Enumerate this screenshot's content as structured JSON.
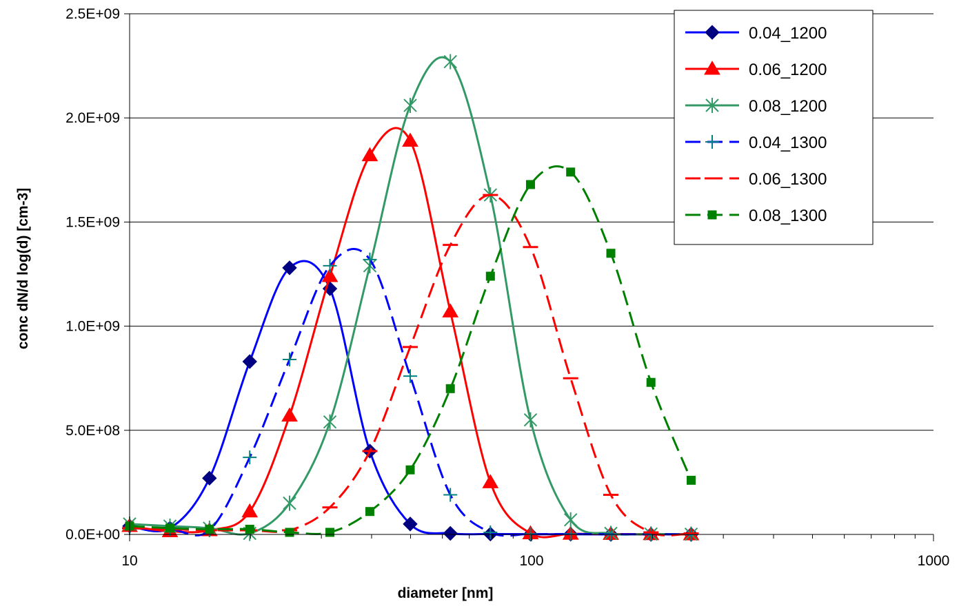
{
  "chart_data": {
    "type": "line",
    "title": "",
    "xlabel": "diameter [nm]",
    "ylabel": "conc dN/d log(d) [cm-3]",
    "x_scale": "log",
    "xlim": [
      10,
      1000
    ],
    "ylim": [
      0,
      2500000000
    ],
    "x_tick_labels": [
      "10",
      "100",
      "1000"
    ],
    "x_ticks": [
      10,
      100,
      1000
    ],
    "y_tick_labels": [
      "0.0E+00",
      "5.0E+08",
      "1.0E+09",
      "1.5E+09",
      "2.0E+09",
      "2.5E+09"
    ],
    "y_ticks": [
      0,
      500000000,
      1000000000,
      1500000000,
      2000000000,
      2500000000
    ],
    "grid": "horizontal",
    "legend_position": "top-right",
    "x": [
      10,
      12.6,
      15.8,
      19.9,
      25.0,
      31.5,
      39.6,
      49.9,
      62.8,
      79.0,
      99.4,
      125.1,
      157.5,
      198.2,
      249.5
    ],
    "series": [
      {
        "name": "0.04_1200",
        "color": "#0000ff",
        "dash": "solid",
        "marker": "diamond",
        "marker_color": "#000080",
        "values": [
          40000000,
          30000000,
          270000000,
          830000000,
          1280000000,
          1180000000,
          400000000,
          50000000,
          5000000,
          2000000,
          1000000,
          1000000,
          0,
          0,
          0
        ]
      },
      {
        "name": "0.06_1200",
        "color": "#ff0000",
        "dash": "solid",
        "marker": "triangle",
        "marker_color": "#ff0000",
        "values": [
          40000000,
          15000000,
          20000000,
          110000000,
          570000000,
          1240000000,
          1820000000,
          1890000000,
          1070000000,
          250000000,
          5000000,
          3000000,
          2000000,
          1000000,
          0
        ]
      },
      {
        "name": "0.08_1200",
        "color": "#339966",
        "dash": "solid",
        "marker": "asterisk",
        "marker_color": "#339966",
        "values": [
          50000000,
          40000000,
          30000000,
          5000000,
          150000000,
          540000000,
          1290000000,
          2060000000,
          2270000000,
          1630000000,
          550000000,
          70000000,
          5000000,
          2000000,
          1000000
        ]
      },
      {
        "name": "0.04_1300",
        "color": "#0000ff",
        "dash": "dashed",
        "marker": "plus",
        "marker_color": "#008080",
        "values": [
          30000000,
          25000000,
          20000000,
          370000000,
          840000000,
          1290000000,
          1320000000,
          760000000,
          190000000,
          10000000,
          2000000,
          2000000,
          1000000,
          1000000,
          0
        ]
      },
      {
        "name": "0.06_1300",
        "color": "#ff0000",
        "dash": "dashed",
        "marker": "dash",
        "marker_color": "#ff0000",
        "values": [
          30000000,
          25000000,
          20000000,
          20000000,
          20000000,
          130000000,
          400000000,
          900000000,
          1390000000,
          1630000000,
          1380000000,
          750000000,
          190000000,
          10000000,
          5000000
        ]
      },
      {
        "name": "0.08_1300",
        "color": "#008000",
        "dash": "dashed",
        "marker": "square",
        "marker_color": "#008000",
        "values": [
          40000000,
          30000000,
          25000000,
          25000000,
          10000000,
          10000000,
          110000000,
          310000000,
          700000000,
          1240000000,
          1680000000,
          1740000000,
          1350000000,
          730000000,
          260000000
        ]
      }
    ]
  }
}
